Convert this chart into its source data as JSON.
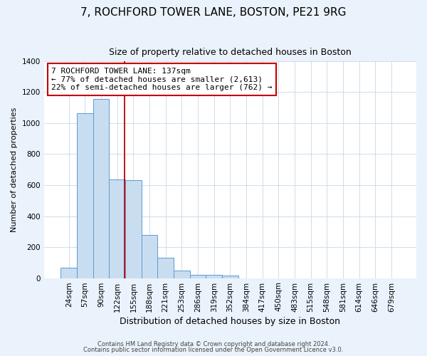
{
  "title": "7, ROCHFORD TOWER LANE, BOSTON, PE21 9RG",
  "subtitle": "Size of property relative to detached houses in Boston",
  "xlabel": "Distribution of detached houses by size in Boston",
  "ylabel": "Number of detached properties",
  "bar_labels": [
    "24sqm",
    "57sqm",
    "90sqm",
    "122sqm",
    "155sqm",
    "188sqm",
    "221sqm",
    "253sqm",
    "286sqm",
    "319sqm",
    "352sqm",
    "384sqm",
    "417sqm",
    "450sqm",
    "483sqm",
    "515sqm",
    "548sqm",
    "581sqm",
    "614sqm",
    "646sqm",
    "679sqm"
  ],
  "bar_values": [
    65,
    1065,
    1155,
    635,
    630,
    280,
    130,
    48,
    22,
    22,
    18,
    0,
    0,
    0,
    0,
    0,
    0,
    0,
    0,
    0,
    0
  ],
  "bar_color": "#c9ddf0",
  "bar_edge_color": "#5b9bd5",
  "property_line_x": 3.45,
  "property_line_color": "#c00000",
  "annotation_text": "7 ROCHFORD TOWER LANE: 137sqm\n← 77% of detached houses are smaller (2,613)\n22% of semi-detached houses are larger (762) →",
  "annotation_box_color": "#ffffff",
  "annotation_box_edge_color": "#c00000",
  "ylim": [
    0,
    1400
  ],
  "yticks": [
    0,
    200,
    400,
    600,
    800,
    1000,
    1200,
    1400
  ],
  "footer1": "Contains HM Land Registry data © Crown copyright and database right 2024.",
  "footer2": "Contains public sector information licensed under the Open Government Licence v3.0.",
  "background_color": "#eaf2fb",
  "plot_bg_color": "#ffffff",
  "title_fontsize": 11,
  "subtitle_fontsize": 9,
  "xlabel_fontsize": 9,
  "ylabel_fontsize": 8,
  "tick_fontsize": 7.5,
  "annotation_fontsize": 8,
  "footer_fontsize": 6
}
